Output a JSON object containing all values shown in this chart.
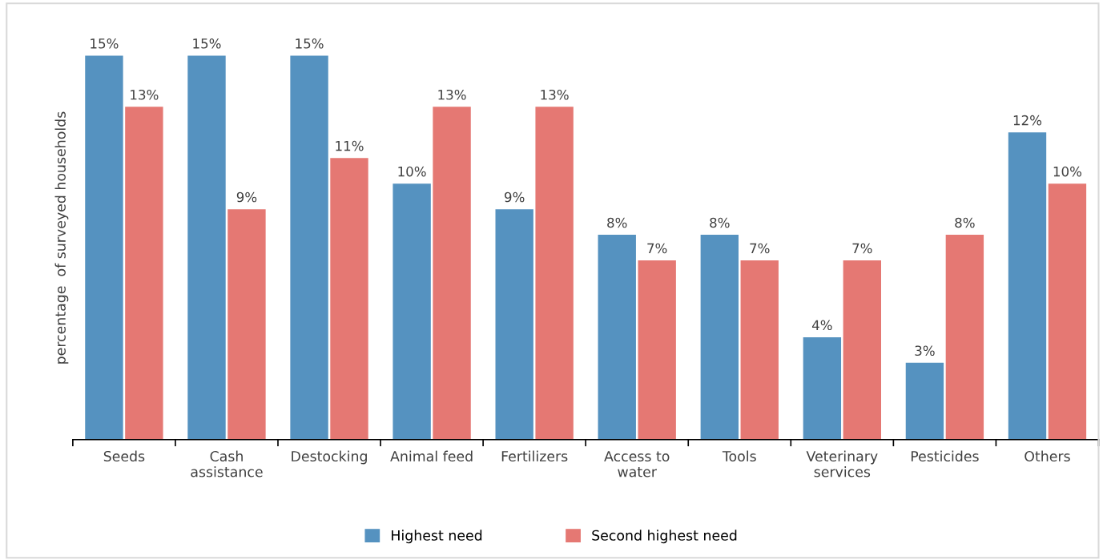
{
  "chart_data": {
    "type": "bar",
    "ylabel": "percentage  of surveyed households",
    "categories": [
      "Seeds",
      "Cash\nassistance",
      "Destocking",
      "Animal feed",
      "Fertilizers",
      "Access to\nwater",
      "Tools",
      "Veterinary\nservices",
      "Pesticides",
      "Others"
    ],
    "series": [
      {
        "name": "Highest need",
        "color": "#5592c0",
        "values": [
          15,
          15,
          15,
          10,
          9,
          8,
          8,
          4,
          3,
          12
        ],
        "value_labels": [
          "15%",
          "15%",
          "15%",
          "10%",
          "9%",
          "8%",
          "8%",
          "4%",
          "3%",
          "12%"
        ]
      },
      {
        "name": "Second highest need",
        "color": "#e57873",
        "values": [
          13,
          9,
          11,
          13,
          13,
          7,
          7,
          7,
          8,
          10
        ],
        "value_labels": [
          "13%",
          "9%",
          "11%",
          "13%",
          "13%",
          "7%",
          "7%",
          "7%",
          "8%",
          "10%"
        ]
      }
    ],
    "grid": false,
    "legend": "bottom"
  }
}
